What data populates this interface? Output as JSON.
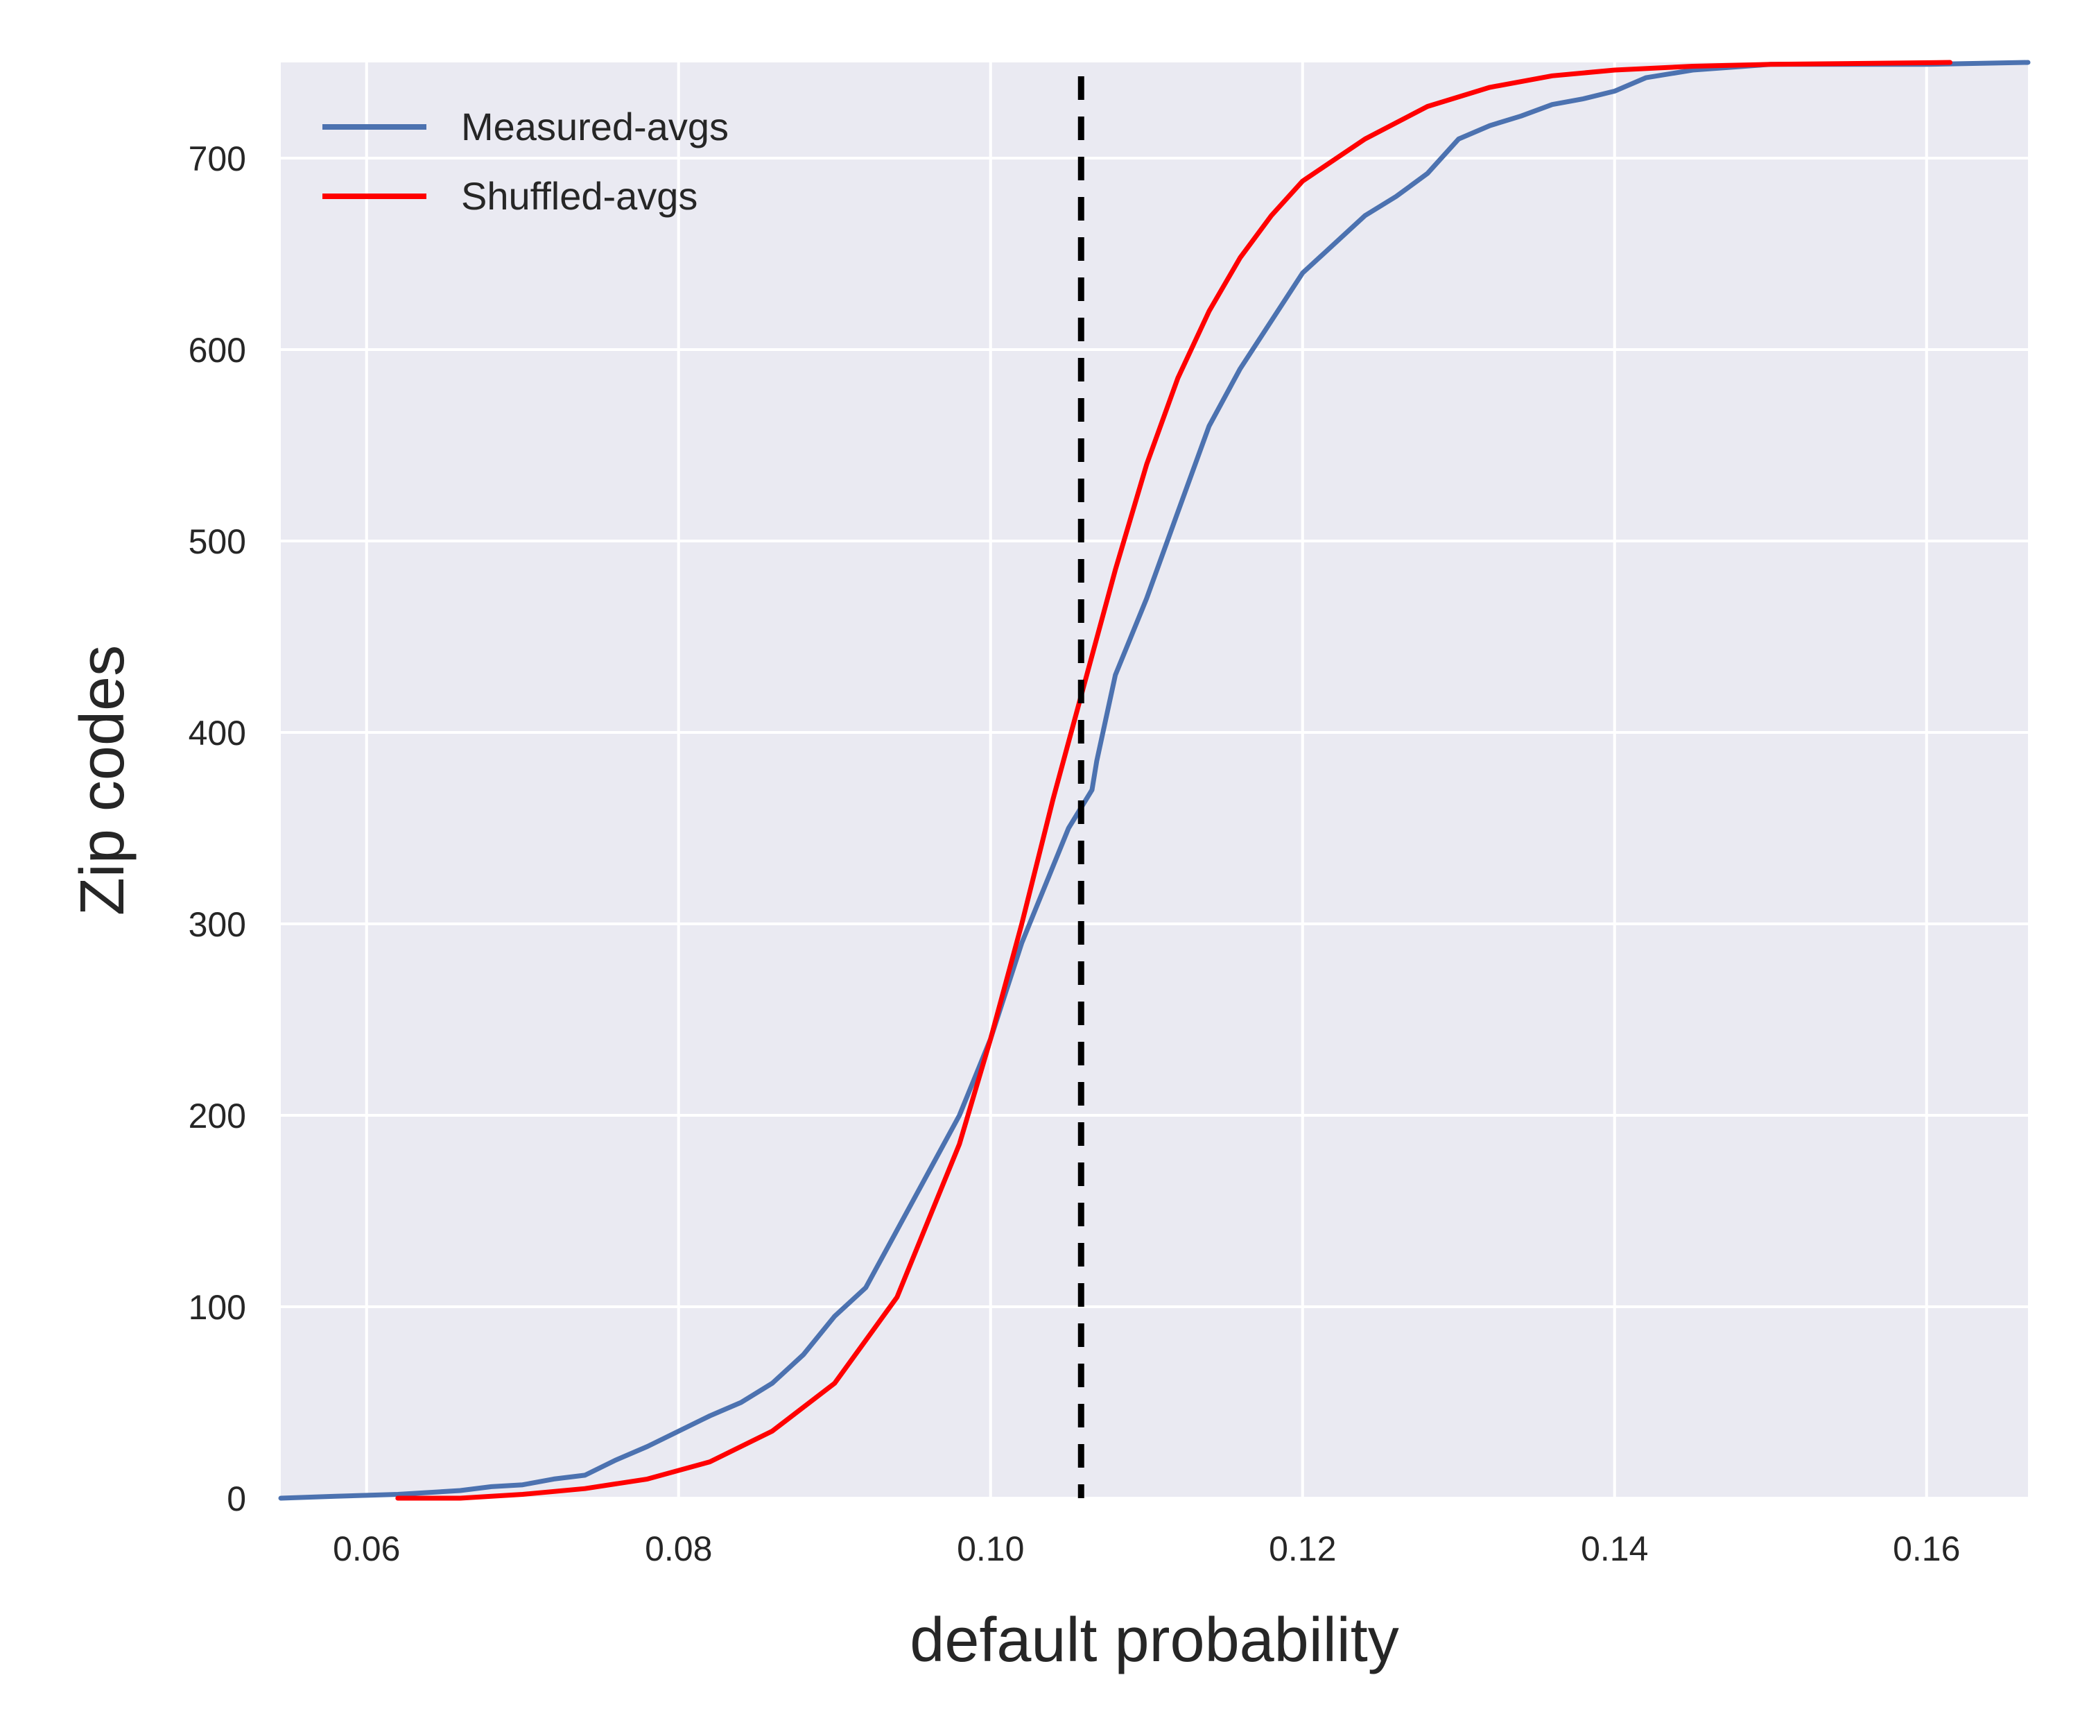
{
  "chart_data": {
    "type": "line",
    "xlabel": "default probability",
    "ylabel": "Zip codes",
    "xlim": [
      0.0545,
      0.1665
    ],
    "ylim": [
      0,
      750
    ],
    "x_ticks": [
      {
        "value": 0.06,
        "label": "0.06"
      },
      {
        "value": 0.08,
        "label": "0.08"
      },
      {
        "value": 0.1,
        "label": "0.10"
      },
      {
        "value": 0.12,
        "label": "0.12"
      },
      {
        "value": 0.14,
        "label": "0.14"
      },
      {
        "value": 0.16,
        "label": "0.16"
      }
    ],
    "y_ticks": [
      {
        "value": 0,
        "label": "0"
      },
      {
        "value": 100,
        "label": "100"
      },
      {
        "value": 200,
        "label": "200"
      },
      {
        "value": 300,
        "label": "300"
      },
      {
        "value": 400,
        "label": "400"
      },
      {
        "value": 500,
        "label": "500"
      },
      {
        "value": 600,
        "label": "600"
      },
      {
        "value": 700,
        "label": "700"
      }
    ],
    "grid": true,
    "background_color": "#EAEAF2",
    "legend_position": "top-left",
    "vline": {
      "x": 0.1058,
      "style": "dashed",
      "color": "#000000"
    },
    "series": [
      {
        "name": "Measured-avgs",
        "color": "#4C72B0",
        "points": [
          [
            0.0545,
            0
          ],
          [
            0.058,
            1
          ],
          [
            0.062,
            2
          ],
          [
            0.066,
            4
          ],
          [
            0.068,
            6
          ],
          [
            0.07,
            7
          ],
          [
            0.072,
            10
          ],
          [
            0.074,
            12
          ],
          [
            0.076,
            20
          ],
          [
            0.078,
            27
          ],
          [
            0.08,
            35
          ],
          [
            0.082,
            43
          ],
          [
            0.084,
            50
          ],
          [
            0.086,
            60
          ],
          [
            0.088,
            75
          ],
          [
            0.09,
            95
          ],
          [
            0.092,
            110
          ],
          [
            0.094,
            140
          ],
          [
            0.096,
            170
          ],
          [
            0.098,
            200
          ],
          [
            0.1,
            240
          ],
          [
            0.102,
            290
          ],
          [
            0.104,
            330
          ],
          [
            0.105,
            350
          ],
          [
            0.1065,
            370
          ],
          [
            0.1068,
            385
          ],
          [
            0.108,
            430
          ],
          [
            0.11,
            470
          ],
          [
            0.112,
            515
          ],
          [
            0.114,
            560
          ],
          [
            0.116,
            590
          ],
          [
            0.118,
            615
          ],
          [
            0.12,
            640
          ],
          [
            0.122,
            655
          ],
          [
            0.124,
            670
          ],
          [
            0.126,
            680
          ],
          [
            0.128,
            692
          ],
          [
            0.13,
            710
          ],
          [
            0.132,
            717
          ],
          [
            0.134,
            722
          ],
          [
            0.136,
            728
          ],
          [
            0.138,
            731
          ],
          [
            0.14,
            735
          ],
          [
            0.142,
            742
          ],
          [
            0.145,
            746
          ],
          [
            0.15,
            749
          ],
          [
            0.16,
            749
          ],
          [
            0.1665,
            750
          ]
        ]
      },
      {
        "name": "Shuffled-avgs",
        "color": "#FF0000",
        "points": [
          [
            0.062,
            0
          ],
          [
            0.066,
            0
          ],
          [
            0.07,
            2
          ],
          [
            0.074,
            5
          ],
          [
            0.078,
            10
          ],
          [
            0.082,
            19
          ],
          [
            0.086,
            35
          ],
          [
            0.09,
            60
          ],
          [
            0.094,
            105
          ],
          [
            0.098,
            185
          ],
          [
            0.1,
            240
          ],
          [
            0.102,
            300
          ],
          [
            0.104,
            365
          ],
          [
            0.106,
            425
          ],
          [
            0.108,
            485
          ],
          [
            0.11,
            540
          ],
          [
            0.112,
            585
          ],
          [
            0.114,
            620
          ],
          [
            0.116,
            648
          ],
          [
            0.118,
            670
          ],
          [
            0.12,
            688
          ],
          [
            0.124,
            710
          ],
          [
            0.128,
            727
          ],
          [
            0.132,
            737
          ],
          [
            0.136,
            743
          ],
          [
            0.14,
            746
          ],
          [
            0.145,
            748
          ],
          [
            0.15,
            749
          ],
          [
            0.1615,
            750
          ]
        ]
      }
    ]
  }
}
